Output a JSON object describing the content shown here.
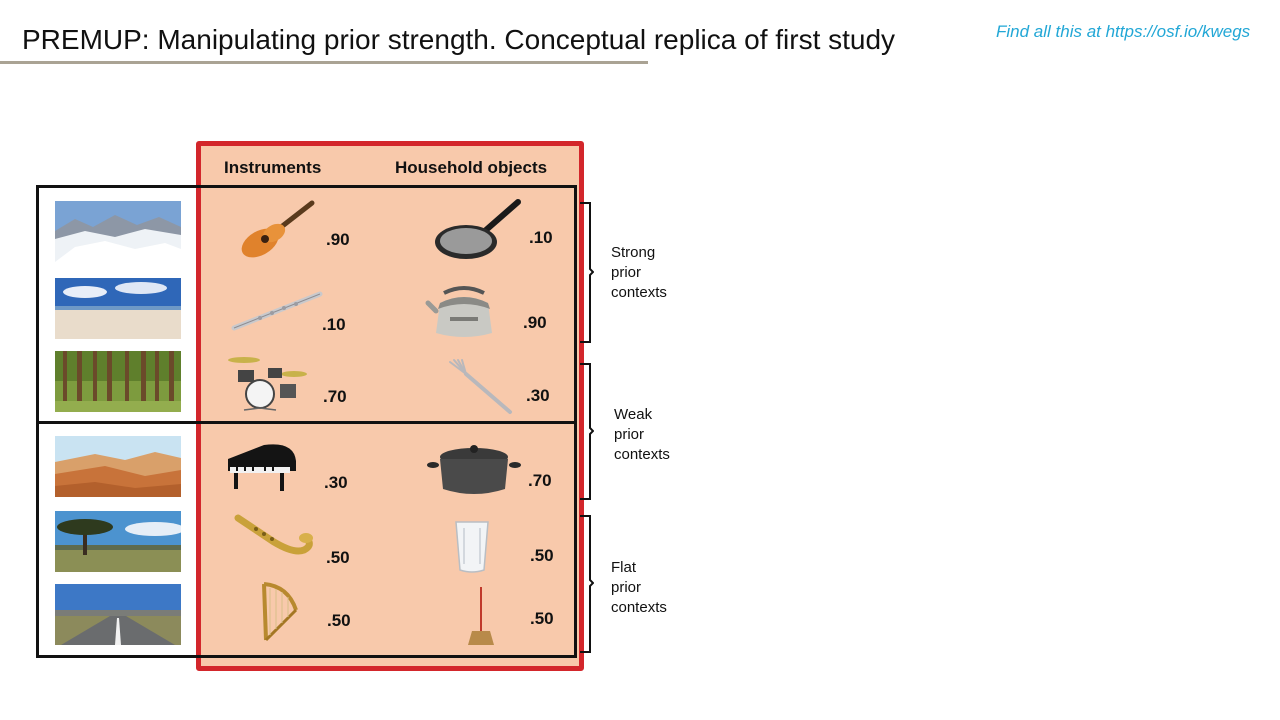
{
  "title": "PREMUP: Manipulating prior strength. Conceptual replica of first study",
  "link": "Find all this at https://osf.io/kwegs",
  "columns": {
    "instruments": "Instruments",
    "household": "Household objects"
  },
  "rows": [
    {
      "scene": "snowy-mountains",
      "instrument": {
        "icon": "guitar-icon",
        "prob": ".90"
      },
      "household": {
        "icon": "frying-pan-icon",
        "prob": ".10"
      }
    },
    {
      "scene": "beach",
      "instrument": {
        "icon": "flute-icon",
        "prob": ".10"
      },
      "household": {
        "icon": "kettle-icon",
        "prob": ".90"
      }
    },
    {
      "scene": "forest",
      "instrument": {
        "icon": "drum-kit-icon",
        "prob": ".70"
      },
      "household": {
        "icon": "fork-icon",
        "prob": ".30"
      }
    },
    {
      "scene": "desert",
      "instrument": {
        "icon": "piano-icon",
        "prob": ".30"
      },
      "household": {
        "icon": "pot-icon",
        "prob": ".70"
      }
    },
    {
      "scene": "savanna",
      "instrument": {
        "icon": "saxophone-icon",
        "prob": ".50"
      },
      "household": {
        "icon": "glass-icon",
        "prob": ".50"
      }
    },
    {
      "scene": "road",
      "instrument": {
        "icon": "harp-icon",
        "prob": ".50"
      },
      "household": {
        "icon": "broom-icon",
        "prob": ".50"
      }
    }
  ],
  "contexts": [
    {
      "lines": [
        "Strong",
        "prior",
        "contexts"
      ]
    },
    {
      "lines": [
        "Weak",
        "prior",
        "contexts"
      ]
    },
    {
      "lines": [
        "Flat",
        "prior",
        "contexts"
      ]
    }
  ],
  "colors": {
    "accent_red": "#d3262b",
    "panel_fill": "#f8c9ab",
    "link_blue": "#22a7d6",
    "title_rule": "#aaa394"
  }
}
